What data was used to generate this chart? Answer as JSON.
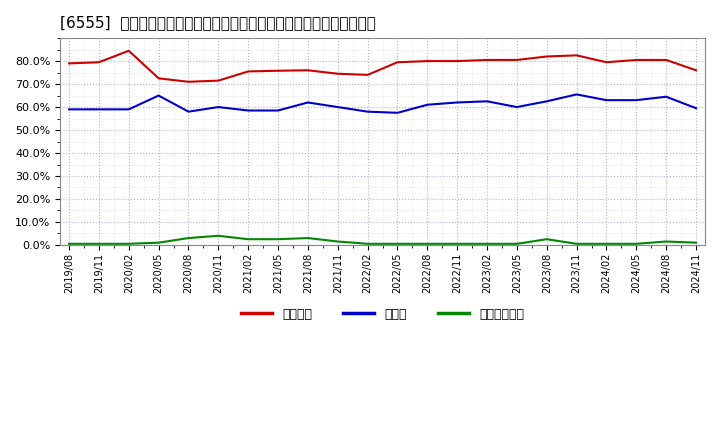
{
  "title": "[6555]  自己資本、のれん、繰延税金資産の総資産に対する比率の推移",
  "xlabel": "",
  "ylabel": "",
  "background_color": "#ffffff",
  "plot_background_color": "#ffffff",
  "grid_color": "#aaaacc",
  "x_labels": [
    "2019/08",
    "2019/11",
    "2020/02",
    "2020/05",
    "2020/08",
    "2020/11",
    "2021/02",
    "2021/05",
    "2021/08",
    "2021/11",
    "2022/02",
    "2022/05",
    "2022/08",
    "2022/11",
    "2023/02",
    "2023/05",
    "2023/08",
    "2023/11",
    "2024/02",
    "2024/05",
    "2024/08",
    "2024/11"
  ],
  "jiko_shihon": [
    79.0,
    79.5,
    84.5,
    72.5,
    71.0,
    71.5,
    75.5,
    75.8,
    76.0,
    74.5,
    74.0,
    79.5,
    80.0,
    80.0,
    80.5,
    80.5,
    82.0,
    82.5,
    79.5,
    80.5,
    80.5,
    76.0
  ],
  "noren": [
    59.0,
    59.0,
    59.0,
    65.0,
    58.0,
    60.0,
    58.5,
    58.5,
    62.0,
    60.0,
    58.0,
    57.5,
    61.0,
    62.0,
    62.5,
    60.0,
    62.5,
    65.5,
    63.0,
    63.0,
    64.5,
    59.5
  ],
  "kurinobe_zekin_shisan": [
    0.5,
    0.5,
    0.5,
    1.0,
    3.0,
    4.0,
    2.5,
    2.5,
    3.0,
    1.5,
    0.5,
    0.5,
    0.5,
    0.5,
    0.5,
    0.5,
    2.5,
    0.5,
    0.5,
    0.5,
    1.5,
    1.0
  ],
  "jiko_color": "#cc0000",
  "noren_color": "#0000cc",
  "kurinobe_color": "#008800",
  "legend_label_jiko": "自己資本",
  "legend_label_noren": "のれん",
  "legend_label_kurinobe": "繰延税金資産",
  "ylim": [
    0,
    90
  ],
  "yticks": [
    0,
    10,
    20,
    30,
    40,
    50,
    60,
    70,
    80
  ],
  "title_fontsize": 11
}
